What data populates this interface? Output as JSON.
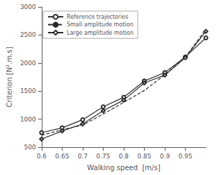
{
  "chart_data": {
    "type": "line",
    "x": [
      0.6,
      0.65,
      0.7,
      0.75,
      0.8,
      0.85,
      0.9,
      0.95,
      1.0
    ],
    "series": [
      {
        "name": "Reference trajectories",
        "color": "#2a2a2a",
        "marker": "circle",
        "line_style": "solid",
        "values": [
          760,
          845,
          990,
          1220,
          1390,
          1680,
          1830,
          2110,
          2450
        ]
      },
      {
        "name": "Small amplitude motion",
        "color": "#2a2a2a",
        "marker": "none",
        "line_style": "dashed",
        "values": [
          715,
          810,
          895,
          1090,
          1300,
          1510,
          1790,
          2105,
          2600
        ]
      },
      {
        "name": "Large amplitude motion",
        "color": "#2a2a2a",
        "marker": "diamond",
        "line_style": "solid",
        "values": [
          645,
          790,
          915,
          1150,
          1340,
          1645,
          1785,
          2095,
          2565
        ]
      }
    ],
    "xlabel": "Walking speed  [m/s]",
    "ylabel": "Criterion [N².m.s]",
    "xlim": [
      0.6,
      1.0
    ],
    "ylim": [
      500,
      3000
    ],
    "xticks": [
      0.6,
      0.65,
      0.7,
      0.75,
      0.8,
      0.85,
      0.9,
      0.95
    ],
    "yticks": [
      500,
      1000,
      1500,
      2000,
      2500,
      3000
    ],
    "grid": false,
    "legend": "upper left"
  }
}
